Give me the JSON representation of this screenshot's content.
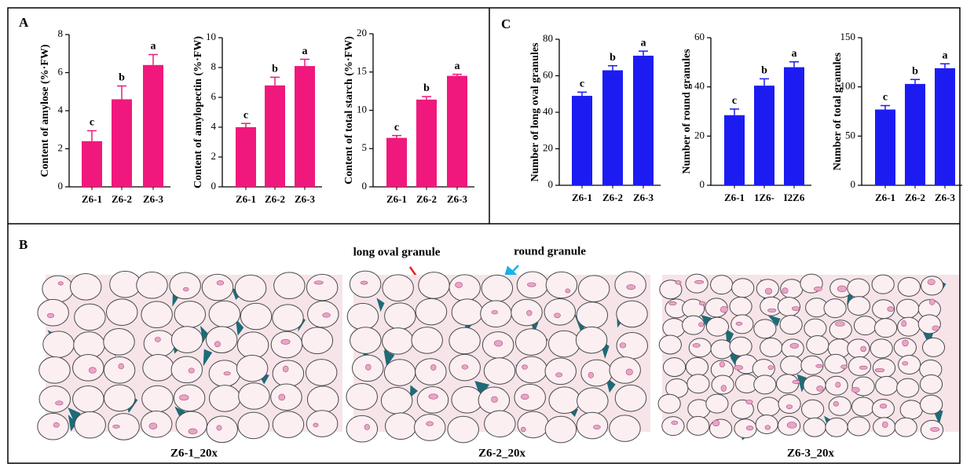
{
  "panel_labels": [
    "A",
    "B",
    "C"
  ],
  "annotations": [
    "long oval granule",
    "round granule"
  ],
  "images": [
    {
      "caption": "Z6-1_20x"
    },
    {
      "caption": "Z6-2_20x"
    },
    {
      "caption": "Z6-3_20x"
    }
  ],
  "chart_data": [
    {
      "type": "bar",
      "ylabel": "Content of amylose (%·FW)",
      "categories": [
        "Z6-1",
        "Z6-2",
        "Z6-3"
      ],
      "values": [
        2.4,
        4.6,
        6.4
      ],
      "errors": [
        0.55,
        0.7,
        0.55
      ],
      "significance": [
        "c",
        "b",
        "a"
      ],
      "color": "#f0187c",
      "ylim": [
        0,
        8
      ],
      "yticks": [
        0,
        2,
        4,
        6,
        8
      ]
    },
    {
      "type": "bar",
      "ylabel": "Content of amylopectin (%·FW)",
      "categories": [
        "Z6-1",
        "Z6-2",
        "Z6-3"
      ],
      "values": [
        4.0,
        6.8,
        8.1
      ],
      "errors": [
        0.25,
        0.55,
        0.45
      ],
      "significance": [
        "c",
        "b",
        "a"
      ],
      "color": "#f0187c",
      "ylim": [
        0,
        10
      ],
      "yticks": [
        0,
        2,
        4,
        6,
        8,
        10
      ]
    },
    {
      "type": "bar",
      "ylabel": "Content of total starch (%·FW)",
      "categories": [
        "Z6-1",
        "Z6-2",
        "Z6-3"
      ],
      "values": [
        6.4,
        11.4,
        14.5
      ],
      "errors": [
        0.3,
        0.4,
        0.2
      ],
      "significance": [
        "c",
        "b",
        "a"
      ],
      "color": "#f0187c",
      "ylim": [
        0,
        20
      ],
      "yticks": [
        0,
        5,
        10,
        15,
        20
      ]
    },
    {
      "type": "bar",
      "ylabel": "Number of long oval granules",
      "categories": [
        "Z6-1",
        "Z6-2",
        "Z6-3"
      ],
      "values": [
        49,
        63,
        71
      ],
      "errors": [
        2,
        2.5,
        2.5
      ],
      "significance": [
        "c",
        "b",
        "a"
      ],
      "color": "#1c1cf2",
      "ylim": [
        0,
        80
      ],
      "yticks": [
        0,
        20,
        40,
        60,
        80
      ]
    },
    {
      "type": "bar",
      "ylabel": "Number of round granules",
      "categories": [
        "Z6-1",
        "1Z6-",
        "I2Z6"
      ],
      "values": [
        28.5,
        40.5,
        48
      ],
      "errors": [
        2.5,
        2.8,
        2.2
      ],
      "significance": [
        "c",
        "b",
        "a"
      ],
      "color": "#1c1cf2",
      "ylim": [
        0,
        60
      ],
      "yticks": [
        0,
        20,
        40,
        60
      ]
    },
    {
      "type": "bar",
      "ylabel": "Number of total granules",
      "categories": [
        "Z6-1",
        "Z6-2",
        "Z6-3"
      ],
      "values": [
        77,
        103,
        119
      ],
      "errors": [
        4,
        4.5,
        4.5
      ],
      "significance": [
        "c",
        "b",
        "a"
      ],
      "color": "#1c1cf2",
      "ylim": [
        0,
        150
      ],
      "yticks": [
        0,
        50,
        100,
        150
      ]
    }
  ]
}
